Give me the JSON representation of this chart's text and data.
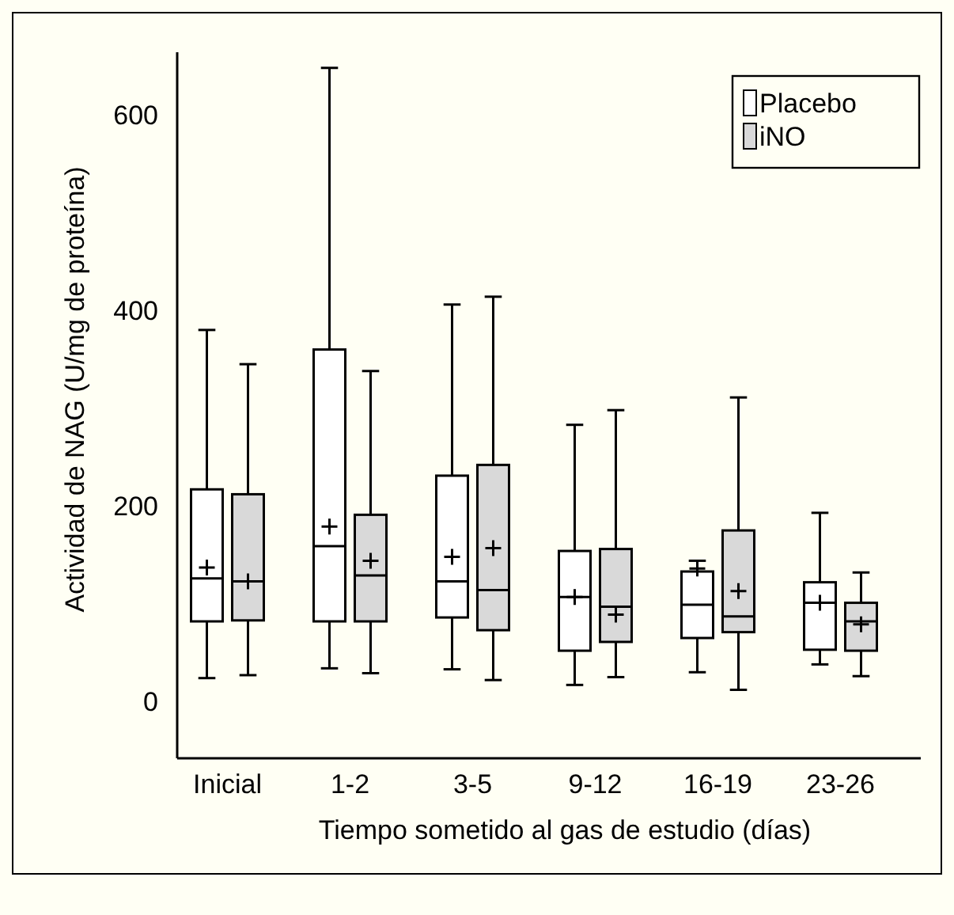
{
  "chart_data": {
    "type": "box",
    "xlabel": "Tiempo sometido al gas de estudio (días)",
    "ylabel": "Actividad de NAG (U/mg de proteína)",
    "categories": [
      "Inicial",
      "1-2",
      "3-5",
      "9-12",
      "16-19",
      "23-26"
    ],
    "ylim": [
      -57,
      665
    ],
    "yticks": [
      0,
      200,
      400,
      600
    ],
    "grid": false,
    "legend": "top right",
    "series": [
      {
        "name": "Placebo",
        "color": "#ffffff",
        "boxes": [
          {
            "low": 25,
            "q1": 83,
            "median": 127,
            "q3": 218,
            "high": 381,
            "mean": 138
          },
          {
            "low": 35,
            "q1": 83,
            "median": 160,
            "q3": 361,
            "high": 649,
            "mean": 180
          },
          {
            "low": 34,
            "q1": 87,
            "median": 124,
            "q3": 232,
            "high": 407,
            "mean": 149
          },
          {
            "low": 18,
            "q1": 53,
            "median": 108,
            "q3": 155,
            "high": 284,
            "mean": 108
          },
          {
            "low": 31,
            "q1": 66,
            "median": 100,
            "q3": 134,
            "high": 145,
            "mean": 137
          },
          {
            "low": 39,
            "q1": 54,
            "median": 102,
            "q3": 123,
            "high": 194,
            "mean": 102
          }
        ]
      },
      {
        "name": "iNO",
        "color": "#d9d9d9",
        "boxes": [
          {
            "low": 28,
            "q1": 84,
            "median": 124,
            "q3": 213,
            "high": 346,
            "mean": 124
          },
          {
            "low": 30,
            "q1": 83,
            "median": 130,
            "q3": 192,
            "high": 339,
            "mean": 145
          },
          {
            "low": 23,
            "q1": 74,
            "median": 115,
            "q3": 243,
            "high": 415,
            "mean": 158
          },
          {
            "low": 26,
            "q1": 62,
            "median": 98,
            "q3": 157,
            "high": 299,
            "mean": 90
          },
          {
            "low": 13,
            "q1": 72,
            "median": 88,
            "q3": 176,
            "high": 312,
            "mean": 114
          },
          {
            "low": 27,
            "q1": 53,
            "median": 83,
            "q3": 102,
            "high": 133,
            "mean": 80
          }
        ]
      }
    ]
  }
}
